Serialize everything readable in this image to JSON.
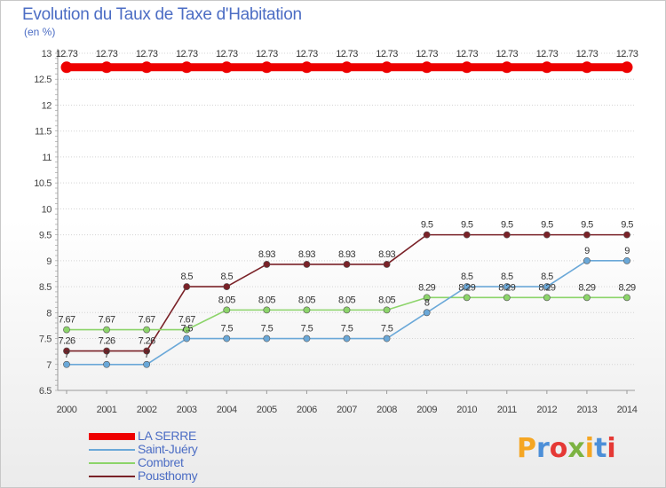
{
  "chart_data": {
    "type": "line",
    "title": "Evolution du Taux de Taxe d'Habitation",
    "ylabel": "(en %)",
    "xlabel": "",
    "categories": [
      "2000",
      "2001",
      "2002",
      "2003",
      "2004",
      "2005",
      "2006",
      "2007",
      "2008",
      "2009",
      "2010",
      "2011",
      "2012",
      "2013",
      "2014"
    ],
    "ylim": [
      6.5,
      13
    ],
    "yticks": [
      "6.5",
      "7",
      "7.5",
      "8",
      "8.5",
      "9",
      "9.5",
      "10",
      "10.5",
      "11",
      "11.5",
      "12",
      "12.5",
      "13"
    ],
    "series": [
      {
        "name": "LA SERRE",
        "color": "#ee0000",
        "values": [
          12.73,
          12.73,
          12.73,
          12.73,
          12.73,
          12.73,
          12.73,
          12.73,
          12.73,
          12.73,
          12.73,
          12.73,
          12.73,
          12.73,
          12.73
        ],
        "labels": [
          "12.73",
          "12.73",
          "12.73",
          "12.73",
          "12.73",
          "12.73",
          "12.73",
          "12.73",
          "12.73",
          "12.73",
          "12.73",
          "12.73",
          "12.73",
          "12.73",
          "12.73"
        ]
      },
      {
        "name": "Saint-Juéry",
        "color": "#6aa8d8",
        "values": [
          7,
          7,
          7,
          7.5,
          7.5,
          7.5,
          7.5,
          7.5,
          7.5,
          8,
          8.5,
          8.5,
          8.5,
          9,
          9
        ],
        "labels": [
          "7",
          "7",
          "7",
          "7.5",
          "7.5",
          "7.5",
          "7.5",
          "7.5",
          "7.5",
          "8",
          "8.5",
          "8.5",
          "8.5",
          "9",
          "9"
        ]
      },
      {
        "name": "Combret",
        "color": "#8cd46a",
        "values": [
          7.67,
          7.67,
          7.67,
          7.67,
          8.05,
          8.05,
          8.05,
          8.05,
          8.05,
          8.29,
          8.29,
          8.29,
          8.29,
          8.29,
          8.29
        ],
        "labels": [
          "7.67",
          "7.67",
          "7.67",
          "7.67",
          "8.05",
          "8.05",
          "8.05",
          "8.05",
          "8.05",
          "8.29",
          "8.29",
          "8.29",
          "8.29",
          "8.29",
          "8.29"
        ]
      },
      {
        "name": "Pousthomy",
        "color": "#7a2228",
        "values": [
          7.26,
          7.26,
          7.26,
          8.5,
          8.5,
          8.93,
          8.93,
          8.93,
          8.93,
          9.5,
          9.5,
          9.5,
          9.5,
          9.5,
          9.5
        ],
        "labels": [
          "7.26",
          "7.26",
          "7.26",
          "8.5",
          "8.5",
          "8.93",
          "8.93",
          "8.93",
          "8.93",
          "9.5",
          "9.5",
          "9.5",
          "9.5",
          "9.5",
          "9.5"
        ]
      }
    ],
    "grid": true,
    "legend_position": "bottom-left"
  },
  "legend": [
    "LA SERRE",
    "Saint-Juéry",
    "Combret",
    "Pousthomy"
  ],
  "logo": {
    "text": "Proxiti",
    "letters": [
      "P",
      "r",
      "o",
      "x",
      "i",
      "t",
      "i"
    ],
    "colors": [
      "#f5a623",
      "#4c8fd8",
      "#e53935",
      "#7cb342",
      "#f5a623",
      "#4c8fd8",
      "#e53935"
    ]
  }
}
